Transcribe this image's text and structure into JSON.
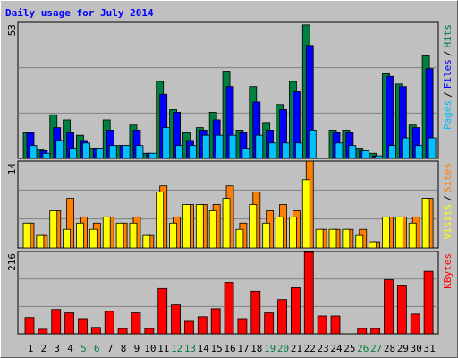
{
  "chart_data": [
    {
      "type": "bar",
      "title": "Daily usage for July 2014",
      "title_color": "#0000FF",
      "ylim": [
        0,
        53
      ],
      "yticks": [
        53
      ],
      "grid": true,
      "legend_separator": "/",
      "series": [
        {
          "name": "Hits",
          "color": "#008040",
          "values": [
            10,
            3.5,
            17,
            15,
            9,
            4,
            15,
            5,
            13,
            2,
            30,
            19,
            10,
            12,
            18,
            34,
            11,
            28,
            14,
            21,
            30,
            52,
            0,
            11,
            11,
            4,
            2,
            33,
            29,
            13,
            40
          ]
        },
        {
          "name": "Files",
          "color": "#0000FF",
          "values": [
            10,
            3,
            12,
            10,
            7,
            4,
            11,
            5,
            11,
            2,
            25,
            18,
            7,
            11,
            15,
            28,
            10,
            22,
            11,
            19,
            26,
            44,
            0,
            10,
            10,
            3,
            1,
            32,
            28,
            12,
            35
          ]
        },
        {
          "name": "Pages",
          "color": "#00C0FF",
          "values": [
            5,
            2,
            7,
            4,
            6,
            4,
            5,
            5,
            5,
            2,
            12,
            5,
            5,
            9,
            9,
            9,
            4,
            9,
            6,
            6,
            6,
            11,
            0,
            6,
            5,
            3,
            1,
            5,
            8,
            5,
            8
          ]
        }
      ]
    },
    {
      "type": "bar",
      "ylim": [
        0,
        14
      ],
      "yticks": [
        14
      ],
      "grid": true,
      "legend_separator": "/",
      "series": [
        {
          "name": "Sites",
          "color": "#FF8000",
          "values": [
            4,
            2,
            6,
            8,
            5,
            4,
            5,
            4,
            5,
            2,
            10,
            5,
            7,
            7,
            7,
            10,
            4,
            9,
            6,
            7,
            6,
            14,
            3,
            3,
            3,
            3,
            1,
            5,
            5,
            5,
            8
          ]
        },
        {
          "name": "Visits",
          "color": "#FFFF00",
          "values": [
            4,
            2,
            6,
            3,
            4,
            3,
            5,
            4,
            4,
            2,
            9,
            4,
            7,
            7,
            6,
            8,
            3,
            7,
            4,
            5,
            5,
            11,
            3,
            3,
            3,
            2,
            1,
            5,
            5,
            4,
            8
          ]
        }
      ]
    },
    {
      "type": "bar",
      "ylim": [
        0,
        216
      ],
      "yticks": [
        216
      ],
      "grid": true,
      "categories": [
        "1",
        "2",
        "3",
        "4",
        "5",
        "6",
        "7",
        "8",
        "9",
        "10",
        "11",
        "12",
        "13",
        "14",
        "15",
        "16",
        "17",
        "18",
        "19",
        "20",
        "21",
        "22",
        "23",
        "24",
        "25",
        "26",
        "27",
        "28",
        "29",
        "30",
        "31"
      ],
      "category_colors": [
        "#000000",
        "#000000",
        "#000000",
        "#000000",
        "#008040",
        "#008040",
        "#000000",
        "#000000",
        "#000000",
        "#000000",
        "#000000",
        "#008040",
        "#008040",
        "#000000",
        "#000000",
        "#000000",
        "#000000",
        "#000000",
        "#008040",
        "#008040",
        "#000000",
        "#000000",
        "#000000",
        "#000000",
        "#000000",
        "#008040",
        "#008040",
        "#000000",
        "#000000",
        "#000000",
        "#000000"
      ],
      "series": [
        {
          "name": "KBytes",
          "color": "#FF0000",
          "values": [
            43,
            12,
            64,
            55,
            40,
            17,
            59,
            14,
            55,
            14,
            119,
            76,
            33,
            45,
            66,
            135,
            40,
            112,
            55,
            90,
            121,
            214,
            47,
            47,
            0,
            14,
            14,
            142,
            128,
            52,
            164
          ]
        }
      ]
    }
  ]
}
